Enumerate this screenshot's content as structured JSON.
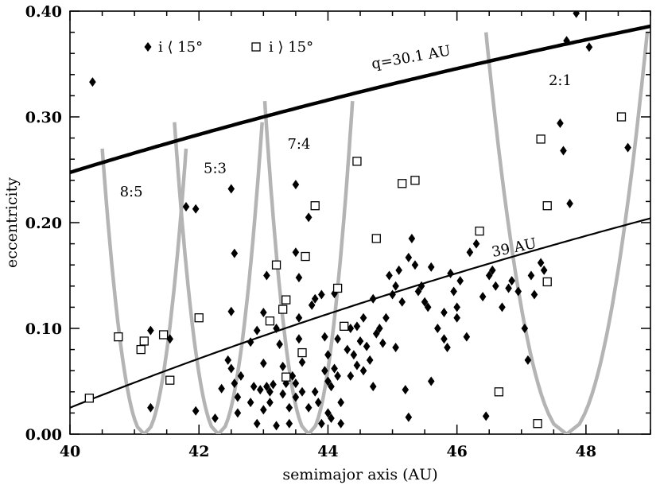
{
  "chart_data": {
    "type": "scatter",
    "xlabel": "semimajor axis (AU)",
    "ylabel": "eccentricity",
    "xlim": [
      40,
      49
    ],
    "ylim": [
      0,
      0.4
    ],
    "xticks": [
      "40",
      "42",
      "44",
      "46",
      "48"
    ],
    "yticks": [
      "0.00",
      "0.10",
      "0.20",
      "0.30",
      "0.40"
    ],
    "legend": [
      {
        "marker": "filled-diamond",
        "label": "i ⟨ 15°"
      },
      {
        "marker": "open-square",
        "label": "i ⟩ 15°"
      }
    ],
    "annotations": [
      {
        "text": "q=30.1 AU",
        "x": 45.3,
        "y": 0.352,
        "angle": -10
      },
      {
        "text": "39 AU",
        "x": 46.9,
        "y": 0.172,
        "angle": -12
      },
      {
        "text": "8:5",
        "x": 40.95,
        "y": 0.225
      },
      {
        "text": "5:3",
        "x": 42.25,
        "y": 0.247
      },
      {
        "text": "7:4",
        "x": 43.55,
        "y": 0.27
      },
      {
        "text": "2:1",
        "x": 47.6,
        "y": 0.33
      }
    ],
    "curves": [
      {
        "name": "q=30.1 AU",
        "q": 30.1,
        "color": "#000000",
        "width": 4.5
      },
      {
        "name": "39 AU",
        "q": 39,
        "color": "#000000",
        "width": 2.2
      }
    ],
    "resonance_boundaries": {
      "color": "#b4b4b4",
      "items": [
        {
          "label": "8:5",
          "center": 41.15,
          "halfwidth_top": 0.65,
          "top_e": 0.27
        },
        {
          "label": "5:3",
          "center": 42.3,
          "halfwidth_top": 0.68,
          "top_e": 0.295
        },
        {
          "label": "7:4",
          "center": 43.7,
          "halfwidth_top": 0.68,
          "top_e": 0.315
        },
        {
          "label": "2:1",
          "center": 47.7,
          "halfwidth_top": 1.25,
          "top_e": 0.38
        }
      ]
    },
    "series": [
      {
        "name": "i ⟨ 15°",
        "marker": "filled-diamond",
        "points": [
          [
            40.35,
            0.333
          ],
          [
            41.25,
            0.098
          ],
          [
            41.25,
            0.025
          ],
          [
            41.55,
            0.09
          ],
          [
            41.8,
            0.215
          ],
          [
            41.95,
            0.213
          ],
          [
            41.95,
            0.022
          ],
          [
            42.25,
            0.015
          ],
          [
            42.35,
            0.043
          ],
          [
            42.45,
            0.07
          ],
          [
            42.5,
            0.232
          ],
          [
            42.55,
            0.171
          ],
          [
            42.5,
            0.116
          ],
          [
            42.5,
            0.062
          ],
          [
            42.55,
            0.048
          ],
          [
            42.6,
            0.035
          ],
          [
            42.6,
            0.02
          ],
          [
            42.65,
            0.055
          ],
          [
            42.8,
            0.087
          ],
          [
            42.8,
            0.03
          ],
          [
            42.85,
            0.045
          ],
          [
            42.9,
            0.01
          ],
          [
            42.95,
            0.042
          ],
          [
            43.0,
            0.115
          ],
          [
            43.0,
            0.067
          ],
          [
            43.0,
            0.023
          ],
          [
            43.05,
            0.045
          ],
          [
            43.1,
            0.04
          ],
          [
            43.1,
            0.03
          ],
          [
            43.15,
            0.047
          ],
          [
            43.2,
            0.008
          ],
          [
            43.2,
            0.1
          ],
          [
            43.25,
            0.085
          ],
          [
            43.3,
            0.064
          ],
          [
            43.3,
            0.038
          ],
          [
            43.35,
            0.048
          ],
          [
            43.4,
            0.025
          ],
          [
            43.4,
            0.01
          ],
          [
            43.45,
            0.055
          ],
          [
            43.5,
            0.172
          ],
          [
            43.5,
            0.236
          ],
          [
            43.5,
            0.048
          ],
          [
            43.5,
            0.035
          ],
          [
            43.55,
            0.148
          ],
          [
            43.55,
            0.11
          ],
          [
            43.55,
            0.09
          ],
          [
            43.6,
            0.068
          ],
          [
            43.6,
            0.04
          ],
          [
            43.7,
            0.025
          ],
          [
            43.7,
            0.205
          ],
          [
            43.75,
            0.122
          ],
          [
            43.8,
            0.128
          ],
          [
            43.8,
            0.04
          ],
          [
            43.85,
            0.03
          ],
          [
            43.9,
            0.01
          ],
          [
            43.9,
            0.132
          ],
          [
            43.95,
            0.092
          ],
          [
            43.95,
            0.06
          ],
          [
            44.0,
            0.075
          ],
          [
            44.0,
            0.05
          ],
          [
            44.0,
            0.02
          ],
          [
            44.05,
            0.045
          ],
          [
            44.05,
            0.015
          ],
          [
            44.1,
            0.133
          ],
          [
            44.1,
            0.062
          ],
          [
            44.15,
            0.09
          ],
          [
            44.15,
            0.055
          ],
          [
            44.2,
            0.01
          ],
          [
            44.2,
            0.03
          ],
          [
            44.3,
            0.08
          ],
          [
            44.35,
            0.1
          ],
          [
            44.4,
            0.075
          ],
          [
            44.45,
            0.102
          ],
          [
            44.5,
            0.088
          ],
          [
            44.55,
            0.06
          ],
          [
            44.55,
            0.11
          ],
          [
            44.6,
            0.083
          ],
          [
            44.65,
            0.07
          ],
          [
            44.7,
            0.128
          ],
          [
            44.75,
            0.095
          ],
          [
            44.8,
            0.1
          ],
          [
            44.85,
            0.086
          ],
          [
            44.9,
            0.11
          ],
          [
            44.95,
            0.15
          ],
          [
            45.0,
            0.132
          ],
          [
            45.05,
            0.082
          ],
          [
            45.1,
            0.155
          ],
          [
            45.15,
            0.125
          ],
          [
            45.2,
            0.042
          ],
          [
            45.25,
            0.016
          ],
          [
            45.25,
            0.167
          ],
          [
            45.3,
            0.185
          ],
          [
            45.35,
            0.16
          ],
          [
            45.4,
            0.135
          ],
          [
            45.45,
            0.14
          ],
          [
            45.5,
            0.125
          ],
          [
            45.55,
            0.12
          ],
          [
            45.6,
            0.158
          ],
          [
            45.7,
            0.1
          ],
          [
            45.8,
            0.115
          ],
          [
            45.85,
            0.082
          ],
          [
            45.9,
            0.152
          ],
          [
            45.95,
            0.135
          ],
          [
            46.0,
            0.12
          ],
          [
            46.0,
            0.11
          ],
          [
            46.05,
            0.145
          ],
          [
            46.15,
            0.092
          ],
          [
            46.2,
            0.172
          ],
          [
            46.3,
            0.18
          ],
          [
            46.4,
            0.13
          ],
          [
            46.45,
            0.017
          ],
          [
            46.5,
            0.15
          ],
          [
            46.6,
            0.14
          ],
          [
            46.7,
            0.12
          ],
          [
            46.8,
            0.138
          ],
          [
            46.85,
            0.145
          ],
          [
            46.95,
            0.135
          ],
          [
            47.05,
            0.1
          ],
          [
            47.1,
            0.07
          ],
          [
            47.15,
            0.15
          ],
          [
            47.2,
            0.132
          ],
          [
            47.3,
            0.162
          ],
          [
            47.35,
            0.155
          ],
          [
            47.6,
            0.294
          ],
          [
            47.65,
            0.268
          ],
          [
            47.75,
            0.218
          ],
          [
            47.7,
            0.372
          ],
          [
            47.85,
            0.398
          ],
          [
            48.05,
            0.366
          ],
          [
            48.65,
            0.271
          ],
          [
            45.8,
            0.09
          ],
          [
            45.6,
            0.05
          ],
          [
            44.7,
            0.045
          ],
          [
            43.05,
            0.15
          ],
          [
            42.9,
            0.098
          ],
          [
            44.45,
            0.065
          ],
          [
            44.35,
            0.055
          ],
          [
            45.05,
            0.14
          ],
          [
            46.55,
            0.155
          ]
        ]
      },
      {
        "name": "i ⟩ 15°",
        "marker": "open-square",
        "points": [
          [
            40.3,
            0.034
          ],
          [
            40.75,
            0.092
          ],
          [
            41.1,
            0.08
          ],
          [
            41.15,
            0.088
          ],
          [
            41.45,
            0.094
          ],
          [
            41.55,
            0.051
          ],
          [
            42.0,
            0.11
          ],
          [
            43.1,
            0.107
          ],
          [
            43.2,
            0.16
          ],
          [
            43.3,
            0.118
          ],
          [
            43.35,
            0.127
          ],
          [
            43.35,
            0.054
          ],
          [
            43.6,
            0.077
          ],
          [
            43.65,
            0.168
          ],
          [
            43.8,
            0.216
          ],
          [
            44.15,
            0.138
          ],
          [
            44.25,
            0.102
          ],
          [
            44.45,
            0.258
          ],
          [
            44.75,
            0.185
          ],
          [
            45.15,
            0.237
          ],
          [
            45.35,
            0.24
          ],
          [
            46.35,
            0.192
          ],
          [
            46.65,
            0.04
          ],
          [
            47.25,
            0.01
          ],
          [
            47.3,
            0.279
          ],
          [
            47.4,
            0.216
          ],
          [
            47.4,
            0.144
          ],
          [
            48.55,
            0.3
          ]
        ]
      }
    ]
  }
}
